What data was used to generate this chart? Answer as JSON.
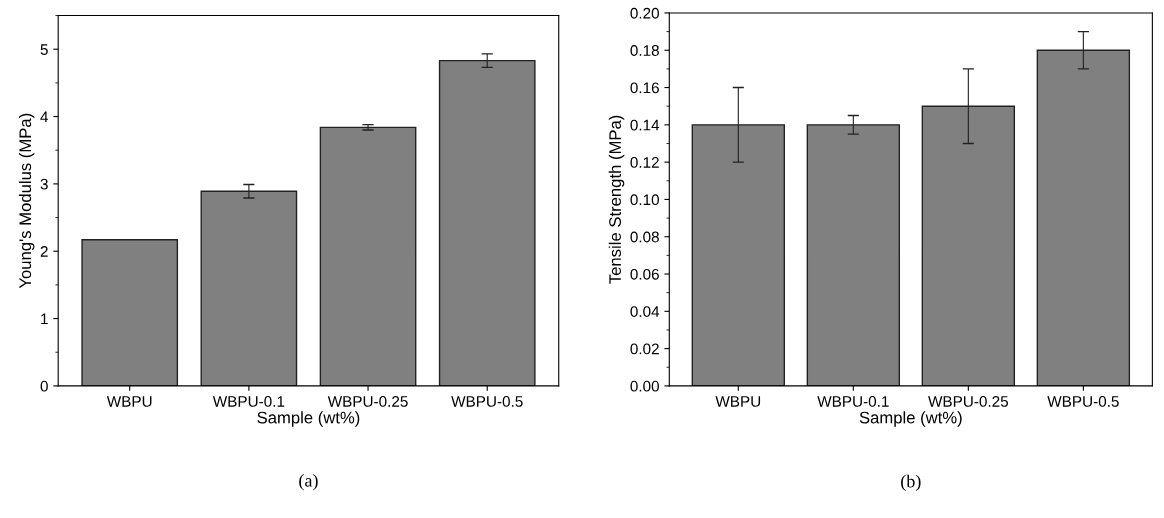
{
  "chart_data": [
    {
      "type": "bar",
      "categories": [
        "WBPU",
        "WBPU-0.1",
        "WBPU-0.25",
        "WBPU-0.5"
      ],
      "values": [
        2.17,
        2.89,
        3.84,
        4.83
      ],
      "errors": [
        null,
        0.1,
        0.04,
        0.1
      ],
      "color": "#808080",
      "xlabel": "Sample (wt%)",
      "ylabel": "Young's Modulus (MPa)",
      "ylim": [
        0,
        5.5
      ],
      "yticks": [
        0,
        1,
        2,
        3,
        4,
        5
      ],
      "annotations": [
        "(a)"
      ]
    },
    {
      "type": "bar",
      "categories": [
        "WBPU",
        "WBPU-0.1",
        "WBPU-0.25",
        "WBPU-0.5"
      ],
      "values": [
        0.14,
        0.14,
        0.15,
        0.18
      ],
      "errors": [
        0.02,
        0.005,
        0.02,
        0.01
      ],
      "color": "#808080",
      "xlabel": "Sample (wt%)",
      "ylabel": "Tensile Strength (MPa)",
      "ylim": [
        0,
        0.2
      ],
      "yticks": [
        {
          "value": 0,
          "label": "0.00"
        },
        {
          "value": 0.02,
          "label": "0.02"
        },
        {
          "value": 0.04,
          "label": "0.04"
        },
        {
          "value": 0.06,
          "label": "0.06"
        },
        {
          "value": 0.08,
          "label": "0.08"
        },
        {
          "value": 0.1,
          "label": "0.10"
        },
        {
          "value": 0.12,
          "label": "0.12"
        },
        {
          "value": 0.14,
          "label": "0.14"
        },
        {
          "value": 0.16,
          "label": "0.16"
        },
        {
          "value": 0.18,
          "label": "0.18"
        },
        {
          "value": 0.2,
          "label": "0.20"
        }
      ],
      "annotations": [
        "(b)"
      ]
    }
  ]
}
